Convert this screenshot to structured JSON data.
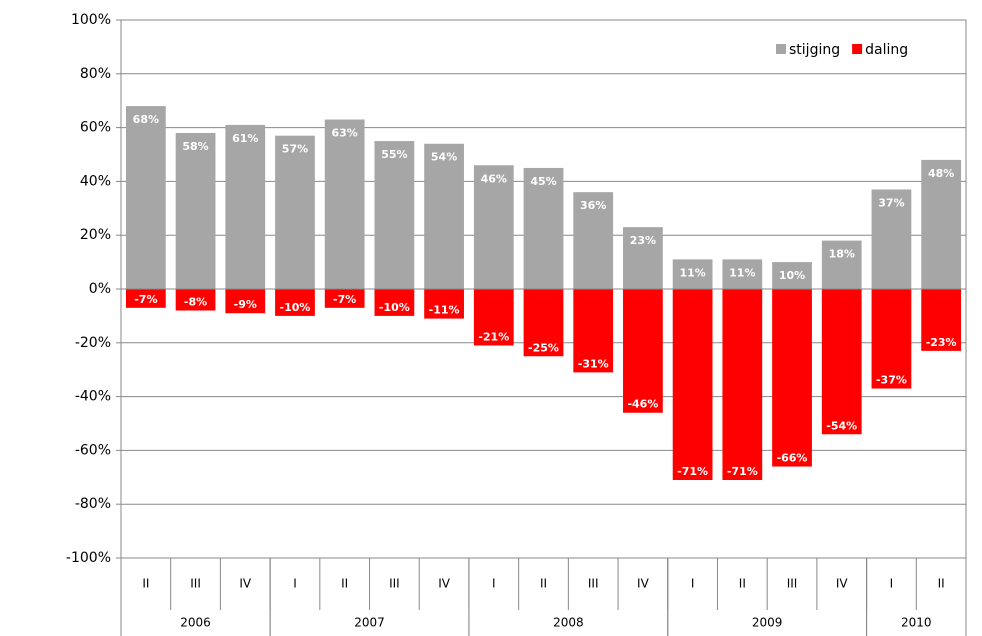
{
  "chart_data": {
    "type": "bar",
    "categories": [
      "II",
      "III",
      "IV",
      "I",
      "II",
      "III",
      "IV",
      "I",
      "II",
      "III",
      "IV",
      "I",
      "II",
      "III",
      "IV",
      "I",
      "II"
    ],
    "year_groups": [
      {
        "name": "2006",
        "count": 3
      },
      {
        "name": "2007",
        "count": 4
      },
      {
        "name": "2008",
        "count": 4
      },
      {
        "name": "2009",
        "count": 4
      },
      {
        "name": "2010",
        "count": 2
      }
    ],
    "series": [
      {
        "name": "stijging",
        "color": "#a6a6a6",
        "values": [
          68,
          58,
          61,
          57,
          63,
          55,
          54,
          46,
          45,
          36,
          23,
          11,
          11,
          10,
          18,
          37,
          48
        ],
        "value_labels": [
          "68%",
          "58%",
          "61%",
          "57%",
          "63%",
          "55%",
          "54%",
          "46%",
          "45%",
          "36%",
          "23%",
          "11%",
          "11%",
          "10%",
          "18%",
          "37%",
          "48%"
        ]
      },
      {
        "name": "daling",
        "color": "#ff0000",
        "values": [
          -7,
          -8,
          -9,
          -10,
          -7,
          -10,
          -11,
          -21,
          -25,
          -31,
          -46,
          -71,
          -71,
          -66,
          -54,
          -37,
          -23
        ],
        "value_labels": [
          "-7%",
          "-8%",
          "-9%",
          "-10%",
          "-7%",
          "-10%",
          "-11%",
          "-21%",
          "-25%",
          "-31%",
          "-46%",
          "-71%",
          "-71%",
          "-66%",
          "-54%",
          "-37%",
          "-23%"
        ]
      }
    ],
    "ylim": [
      -100,
      100
    ],
    "yticks": [
      {
        "value": -100,
        "label": "-100%"
      },
      {
        "value": -80,
        "label": "-80%"
      },
      {
        "value": -60,
        "label": "-60%"
      },
      {
        "value": -40,
        "label": "-40%"
      },
      {
        "value": -20,
        "label": "-20%"
      },
      {
        "value": 0,
        "label": "0%"
      },
      {
        "value": 20,
        "label": "20%"
      },
      {
        "value": 40,
        "label": "40%"
      },
      {
        "value": 60,
        "label": "60%"
      },
      {
        "value": 80,
        "label": "80%"
      },
      {
        "value": 100,
        "label": "100%"
      }
    ],
    "grid": true,
    "legend": "top-right"
  }
}
